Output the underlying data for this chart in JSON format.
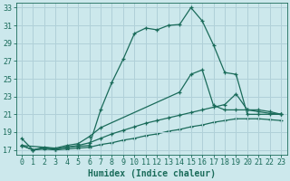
{
  "xlabel": "Humidex (Indice chaleur)",
  "bg_color": "#cce8ec",
  "grid_color": "#b0d0d8",
  "line_color": "#1a6b5a",
  "xlim": [
    -0.5,
    23.5
  ],
  "ylim": [
    16.5,
    33.5
  ],
  "xticks": [
    0,
    1,
    2,
    3,
    4,
    5,
    6,
    7,
    8,
    9,
    10,
    11,
    12,
    13,
    14,
    15,
    16,
    17,
    18,
    19,
    20,
    21,
    22,
    23
  ],
  "yticks": [
    17,
    19,
    21,
    23,
    25,
    27,
    29,
    31,
    33
  ],
  "line1_x": [
    0,
    1,
    2,
    3,
    4,
    5,
    6,
    7,
    8,
    9,
    10,
    11,
    12,
    13,
    14,
    15,
    16,
    17,
    18,
    19,
    20,
    21,
    22,
    23
  ],
  "line1_y": [
    18.3,
    17.0,
    17.3,
    17.1,
    17.3,
    17.4,
    17.5,
    21.5,
    24.6,
    27.2,
    30.1,
    30.7,
    30.5,
    31.0,
    31.1,
    33.0,
    31.5,
    28.8,
    25.7,
    25.5,
    21.0,
    21.0,
    21.0,
    21.0
  ],
  "line2_x": [
    0,
    3,
    4,
    5,
    6,
    7,
    14,
    15,
    16,
    17,
    18,
    19,
    20,
    21,
    22,
    23
  ],
  "line2_y": [
    17.5,
    17.2,
    17.5,
    17.7,
    18.5,
    19.5,
    23.5,
    25.5,
    26.0,
    22.0,
    21.5,
    21.5,
    21.5,
    21.5,
    21.3,
    21.0
  ],
  "line3_x": [
    0,
    1,
    2,
    3,
    4,
    5,
    6,
    7,
    8,
    9,
    10,
    11,
    12,
    13,
    14,
    15,
    16,
    17,
    18,
    19,
    20,
    21,
    22,
    23
  ],
  "line3_y": [
    17.5,
    17.0,
    17.2,
    17.1,
    17.3,
    17.5,
    17.8,
    18.3,
    18.8,
    19.2,
    19.6,
    20.0,
    20.3,
    20.6,
    20.9,
    21.2,
    21.5,
    21.8,
    22.1,
    23.3,
    21.5,
    21.3,
    21.1,
    21.0
  ],
  "line4_x": [
    0,
    1,
    2,
    3,
    4,
    5,
    6,
    7,
    8,
    9,
    10,
    11,
    12,
    13,
    14,
    15,
    16,
    17,
    18,
    19,
    20,
    21,
    22,
    23
  ],
  "line4_y": [
    17.5,
    17.0,
    17.1,
    17.0,
    17.1,
    17.2,
    17.3,
    17.6,
    17.8,
    18.1,
    18.3,
    18.6,
    18.8,
    19.1,
    19.3,
    19.6,
    19.8,
    20.1,
    20.3,
    20.5,
    20.5,
    20.5,
    20.4,
    20.3
  ],
  "marker_size": 3.5,
  "line_width": 0.9,
  "xlabel_fontsize": 7,
  "tick_fontsize": 6
}
